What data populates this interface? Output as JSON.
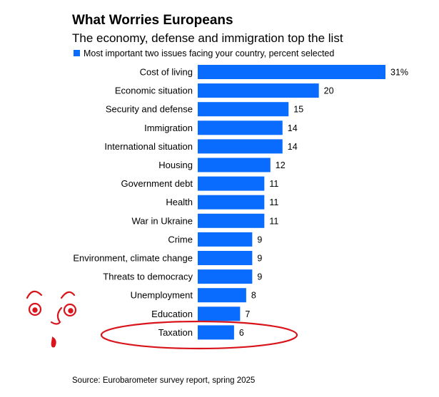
{
  "chart_data": {
    "type": "bar",
    "orientation": "horizontal",
    "title": "What Worries Europeans",
    "subtitle": "The economy, defense and immigration top the list",
    "source": "Source: Eurobarometer survey report, spring 2025",
    "series": [
      {
        "name": "Most important two issues facing your country, percent selected",
        "color": "#0a6cff",
        "values": [
          31,
          20,
          15,
          14,
          14,
          12,
          11,
          11,
          11,
          9,
          9,
          9,
          8,
          7,
          6
        ],
        "value_labels": [
          "31%",
          "20",
          "15",
          "14",
          "14",
          "12",
          "11",
          "11",
          "11",
          "9",
          "9",
          "9",
          "8",
          "7",
          "6"
        ]
      }
    ],
    "categories": [
      "Cost of living",
      "Economic situation",
      "Security and defense",
      "Immigration",
      "International situation",
      "Housing",
      "Government debt",
      "Health",
      "War in Ukraine",
      "Crime",
      "Environment, climate change",
      "Threats to democracy",
      "Unemployment",
      "Education",
      "Taxation"
    ],
    "xlim": [
      0,
      31
    ],
    "grid": false,
    "legend_position": "top-left",
    "annotation": {
      "highlighted_category": "Taxation",
      "shape": "hand-drawn red ellipse",
      "doodle": "hand-drawn red face",
      "color": "#d9141b"
    }
  }
}
